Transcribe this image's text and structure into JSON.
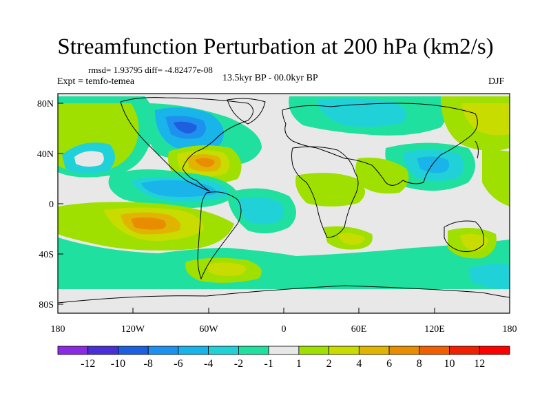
{
  "title": "Streamfunction Perturbation at 200 hPa (km2/s)",
  "stats": "rmsd= 1.93795 diff= -4.82477e-08",
  "experiment": "Expt = temfo-temea",
  "period": "13.5kyr BP - 00.0kyr BP",
  "season": "DJF",
  "axes": {
    "x_ticks": [
      "180",
      "120W",
      "60W",
      "0",
      "60E",
      "120E",
      "180"
    ],
    "y_ticks": [
      "80N",
      "40N",
      "0",
      "40S",
      "80S"
    ]
  },
  "colorbar": {
    "labels": [
      "-12",
      "-10",
      "-8",
      "-6",
      "-4",
      "-2",
      "-1",
      "1",
      "2",
      "4",
      "6",
      "8",
      "10",
      "12"
    ],
    "colors": [
      "#8a2be2",
      "#4b2fd6",
      "#1e5fe0",
      "#1e90ef",
      "#19b4ea",
      "#20d2d8",
      "#20e0a0",
      "#e8e8e8",
      "#9fe000",
      "#c8dc00",
      "#e0b400",
      "#e88c00",
      "#f06000",
      "#f02000",
      "#ff0000"
    ]
  },
  "palette": {
    "background": "#e8e8e8"
  }
}
